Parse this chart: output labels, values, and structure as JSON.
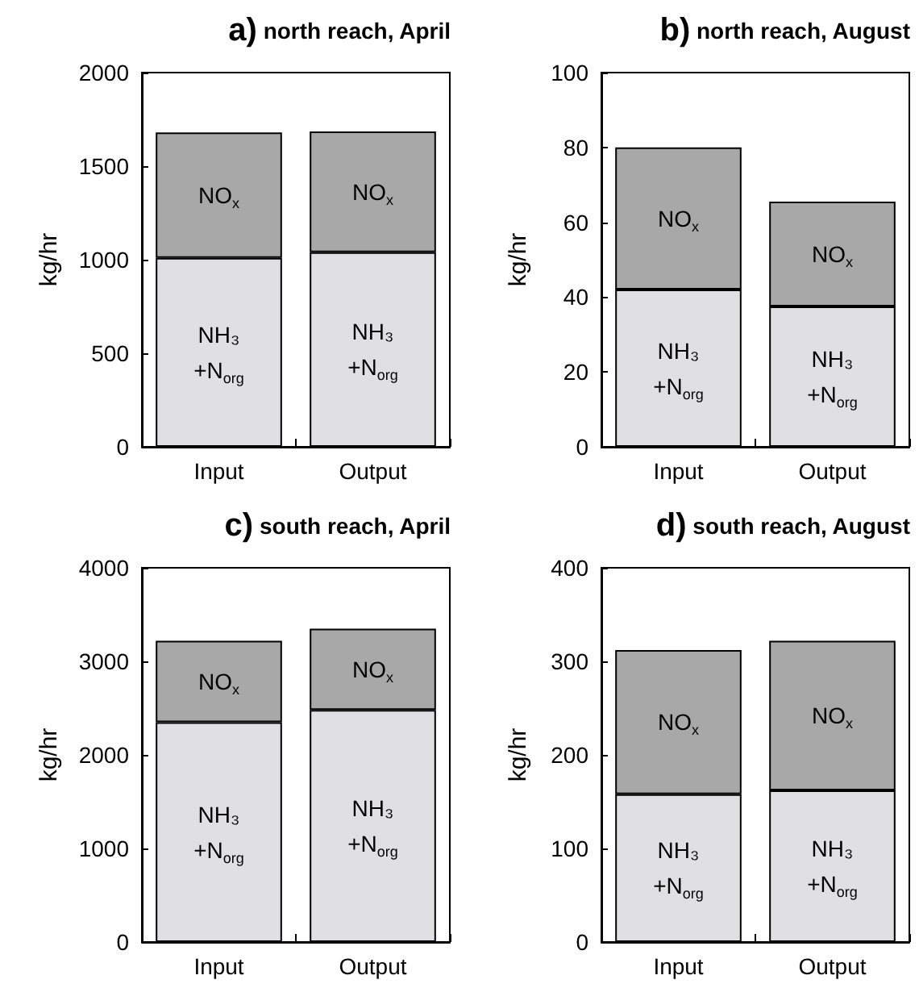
{
  "chart_data": [
    {
      "type": "bar",
      "stacked": true,
      "title": "a) north reach, April",
      "ylabel": "kg/hr",
      "categories": [
        "Input",
        "Output"
      ],
      "ylim": [
        0,
        2000
      ],
      "yticks": [
        0,
        500,
        1000,
        1500,
        2000
      ],
      "grid": false,
      "legend": false,
      "series": [
        {
          "name": "NH₃ +N$_{org}$",
          "color": "#e0e0e2",
          "values": [
            1010,
            1040
          ]
        },
        {
          "name": "NO$_{x}$",
          "color": "#a8a8a8",
          "values": [
            670,
            645
          ]
        }
      ]
    },
    {
      "type": "bar",
      "stacked": true,
      "title": "b) north reach, August",
      "ylabel": "kg/hr",
      "categories": [
        "Input",
        "Output"
      ],
      "ylim": [
        0,
        100
      ],
      "yticks": [
        0,
        20,
        40,
        60,
        80,
        100
      ],
      "grid": false,
      "legend": false,
      "series": [
        {
          "name": "NH₃ +N$_{org}$",
          "color": "#e0e0e2",
          "values": [
            42,
            37.5
          ]
        },
        {
          "name": "NO$_{x}$",
          "color": "#a8a8a8",
          "values": [
            38,
            28
          ]
        }
      ]
    },
    {
      "type": "bar",
      "stacked": true,
      "title": "c) south reach, April",
      "ylabel": "kg/hr",
      "categories": [
        "Input",
        "Output"
      ],
      "ylim": [
        0,
        4000
      ],
      "yticks": [
        0,
        1000,
        2000,
        3000,
        4000
      ],
      "grid": false,
      "legend": false,
      "series": [
        {
          "name": "NH₃ +N$_{org}$",
          "color": "#e0e0e2",
          "values": [
            2350,
            2480
          ]
        },
        {
          "name": "NO$_{x}$",
          "color": "#a8a8a8",
          "values": [
            870,
            870
          ]
        }
      ]
    },
    {
      "type": "bar",
      "stacked": true,
      "title": "d) south reach, August",
      "ylabel": "kg/hr",
      "categories": [
        "Input",
        "Output"
      ],
      "ylim": [
        0,
        400
      ],
      "yticks": [
        0,
        100,
        200,
        300,
        400
      ],
      "grid": false,
      "legend": false,
      "series": [
        {
          "name": "NH₃ +N$_{org}$",
          "color": "#e0e0e2",
          "values": [
            158,
            162
          ]
        },
        {
          "name": "NO$_{x}$",
          "color": "#a8a8a8",
          "values": [
            154,
            160
          ]
        }
      ]
    }
  ]
}
